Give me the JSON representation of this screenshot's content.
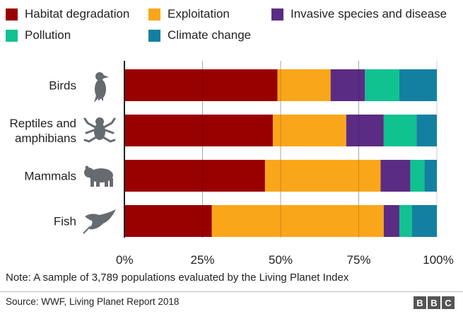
{
  "chart_data": {
    "type": "bar",
    "orientation": "horizontal",
    "stacked": true,
    "categories": [
      [
        "Birds"
      ],
      [
        "Reptiles and",
        "amphibians"
      ],
      [
        "Mammals"
      ],
      [
        "Fish"
      ]
    ],
    "category_icons": [
      "bird-icon",
      "frog-icon",
      "bear-icon",
      "manta-ray-icon"
    ],
    "series": [
      {
        "name": "Habitat degradation",
        "color": "#990000",
        "values": [
          49,
          47.5,
          45,
          28
        ]
      },
      {
        "name": "Exploitation",
        "color": "#FAA61A",
        "values": [
          17,
          23.5,
          37,
          55
        ]
      },
      {
        "name": "Invasive species and disease",
        "color": "#5B2C83",
        "values": [
          11,
          12,
          9.5,
          5
        ]
      },
      {
        "name": "Pollution",
        "color": "#0FC290",
        "values": [
          11,
          10.5,
          4.5,
          4
        ]
      },
      {
        "name": "Climate change",
        "color": "#1380A1",
        "values": [
          12,
          6.5,
          4,
          8
        ]
      }
    ],
    "xlim": [
      0,
      100
    ],
    "x_ticks": [
      "0%",
      "25%",
      "50%",
      "75%",
      "100%"
    ],
    "grid": true,
    "legend_position": "top"
  },
  "note": "Note: A sample of 3,789 populations evaluated by the Living Planet Index",
  "source": "Source: WWF, Living Planet Report 2018",
  "logo": {
    "letters": [
      "B",
      "B",
      "C"
    ]
  }
}
